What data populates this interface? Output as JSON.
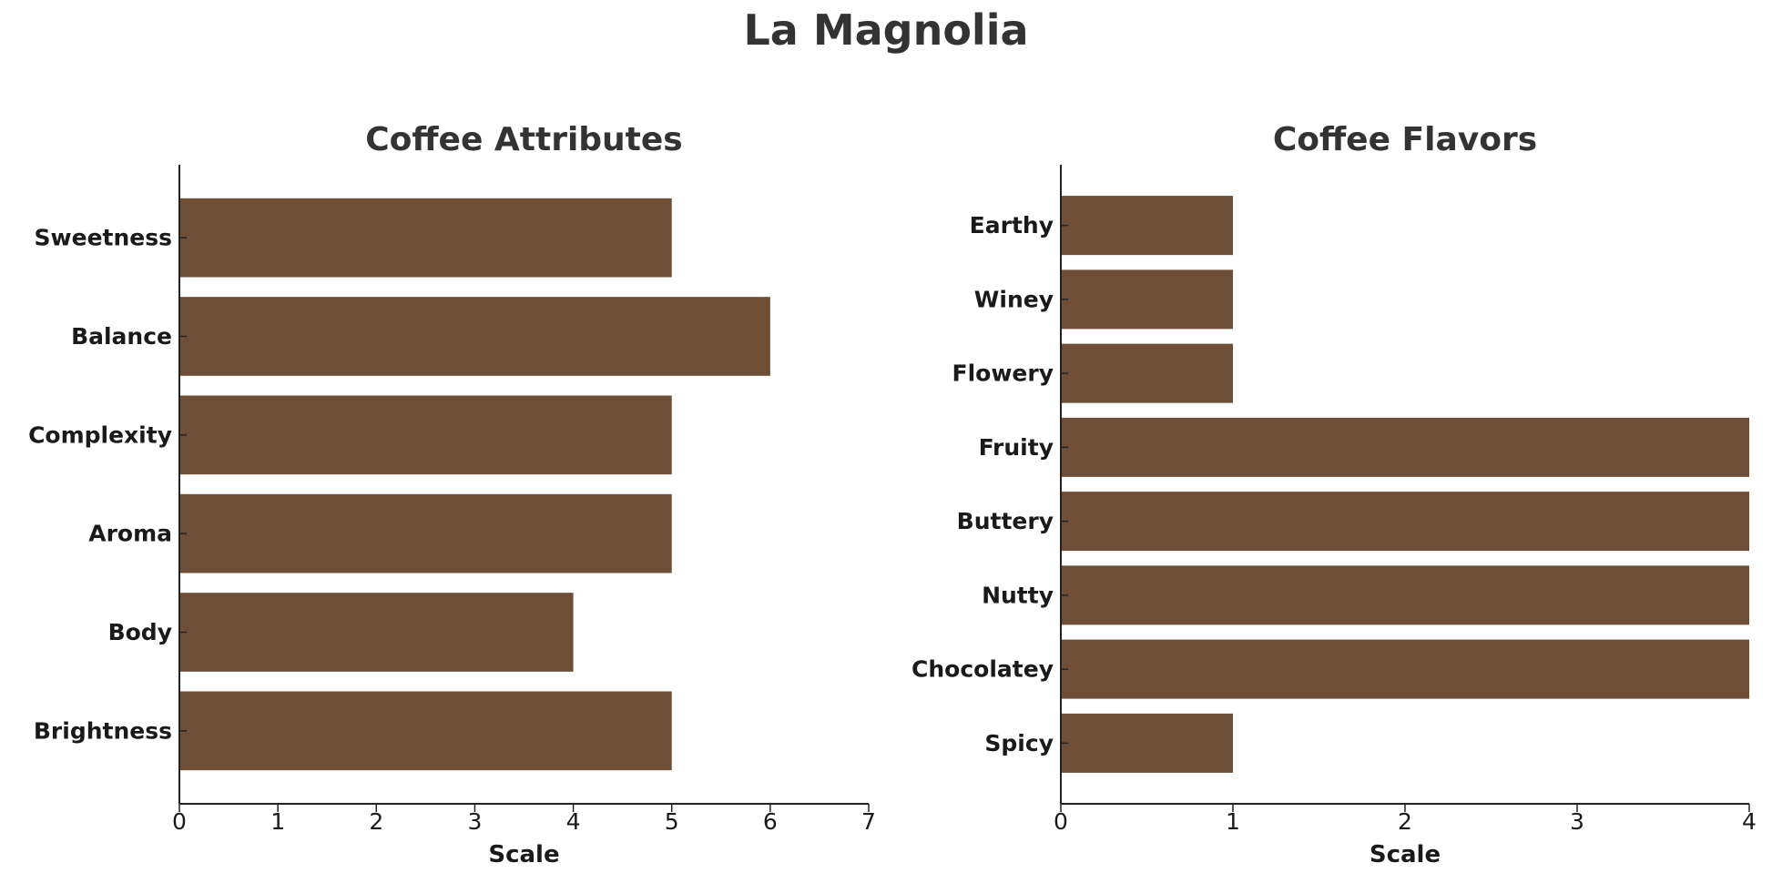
{
  "title": "La Magnolia",
  "bar_color": "#6f4e37",
  "chart_data": [
    {
      "type": "bar",
      "orientation": "horizontal",
      "title": "Coffee Attributes",
      "xlabel": "Scale",
      "ylabel": "",
      "categories": [
        "Brightness",
        "Body",
        "Aroma",
        "Complexity",
        "Balance",
        "Sweetness"
      ],
      "values": [
        5,
        4,
        5,
        5,
        6,
        5
      ],
      "xlim": [
        0,
        7
      ],
      "xticks": [
        0,
        1,
        2,
        3,
        4,
        5,
        6,
        7
      ],
      "grid": false,
      "legend": "none"
    },
    {
      "type": "bar",
      "orientation": "horizontal",
      "title": "Coffee Flavors",
      "xlabel": "Scale",
      "ylabel": "",
      "categories": [
        "Spicy",
        "Chocolatey",
        "Nutty",
        "Buttery",
        "Fruity",
        "Flowery",
        "Winey",
        "Earthy"
      ],
      "values": [
        1,
        4,
        4,
        4,
        4,
        1,
        1,
        1
      ],
      "xlim": [
        0,
        4
      ],
      "xticks": [
        0,
        1,
        2,
        3,
        4
      ],
      "grid": false,
      "legend": "none"
    }
  ]
}
